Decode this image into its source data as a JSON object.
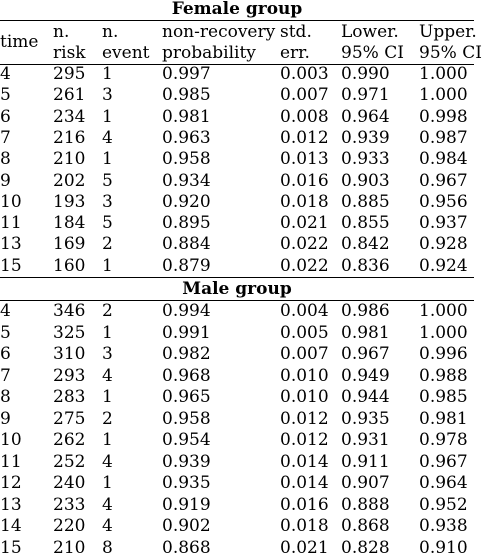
{
  "headers": {
    "time": [
      "time"
    ],
    "risk": [
      "n.",
      "risk"
    ],
    "event": [
      "n.",
      "event"
    ],
    "prob": [
      "non-recovery",
      "probability"
    ],
    "err": [
      "std.",
      "err."
    ],
    "lower": [
      "Lower.",
      "95% CI"
    ],
    "upper": [
      "Upper.",
      "95% CI"
    ]
  },
  "groups": [
    {
      "title": "Female group",
      "rows": [
        [
          "4",
          "295",
          "1",
          "0.997",
          "0.003",
          "0.990",
          "1.000"
        ],
        [
          "5",
          "261",
          "3",
          "0.985",
          "0.007",
          "0.971",
          "1.000"
        ],
        [
          "6",
          "234",
          "1",
          "0.981",
          "0.008",
          "0.964",
          "0.998"
        ],
        [
          "7",
          "216",
          "4",
          "0.963",
          "0.012",
          "0.939",
          "0.987"
        ],
        [
          "8",
          "210",
          "1",
          "0.958",
          "0.013",
          "0.933",
          "0.984"
        ],
        [
          "9",
          "202",
          "5",
          "0.934",
          "0.016",
          "0.903",
          "0.967"
        ],
        [
          "10",
          "193",
          "3",
          "0.920",
          "0.018",
          "0.885",
          "0.956"
        ],
        [
          "11",
          "184",
          "5",
          "0.895",
          "0.021",
          "0.855",
          "0.937"
        ],
        [
          "13",
          "169",
          "2",
          "0.884",
          "0.022",
          "0.842",
          "0.928"
        ],
        [
          "15",
          "160",
          "1",
          "0.879",
          "0.022",
          "0.836",
          "0.924"
        ]
      ]
    },
    {
      "title": "Male group",
      "rows": [
        [
          "4",
          "346",
          "2",
          "0.994",
          "0.004",
          "0.986",
          "1.000"
        ],
        [
          "5",
          "325",
          "1",
          "0.991",
          "0.005",
          "0.981",
          "1.000"
        ],
        [
          "6",
          "310",
          "3",
          "0.982",
          "0.007",
          "0.967",
          "0.996"
        ],
        [
          "7",
          "293",
          "4",
          "0.968",
          "0.010",
          "0.949",
          "0.988"
        ],
        [
          "8",
          "283",
          "1",
          "0.965",
          "0.010",
          "0.944",
          "0.985"
        ],
        [
          "9",
          "275",
          "2",
          "0.958",
          "0.012",
          "0.935",
          "0.981"
        ],
        [
          "10",
          "262",
          "1",
          "0.954",
          "0.012",
          "0.931",
          "0.978"
        ],
        [
          "11",
          "252",
          "4",
          "0.939",
          "0.014",
          "0.911",
          "0.967"
        ],
        [
          "12",
          "240",
          "1",
          "0.935",
          "0.014",
          "0.907",
          "0.964"
        ],
        [
          "13",
          "233",
          "4",
          "0.919",
          "0.016",
          "0.888",
          "0.952"
        ],
        [
          "14",
          "220",
          "4",
          "0.902",
          "0.018",
          "0.868",
          "0.938"
        ],
        [
          "15",
          "210",
          "8",
          "0.868",
          "0.021",
          "0.828",
          "0.910"
        ]
      ]
    }
  ]
}
